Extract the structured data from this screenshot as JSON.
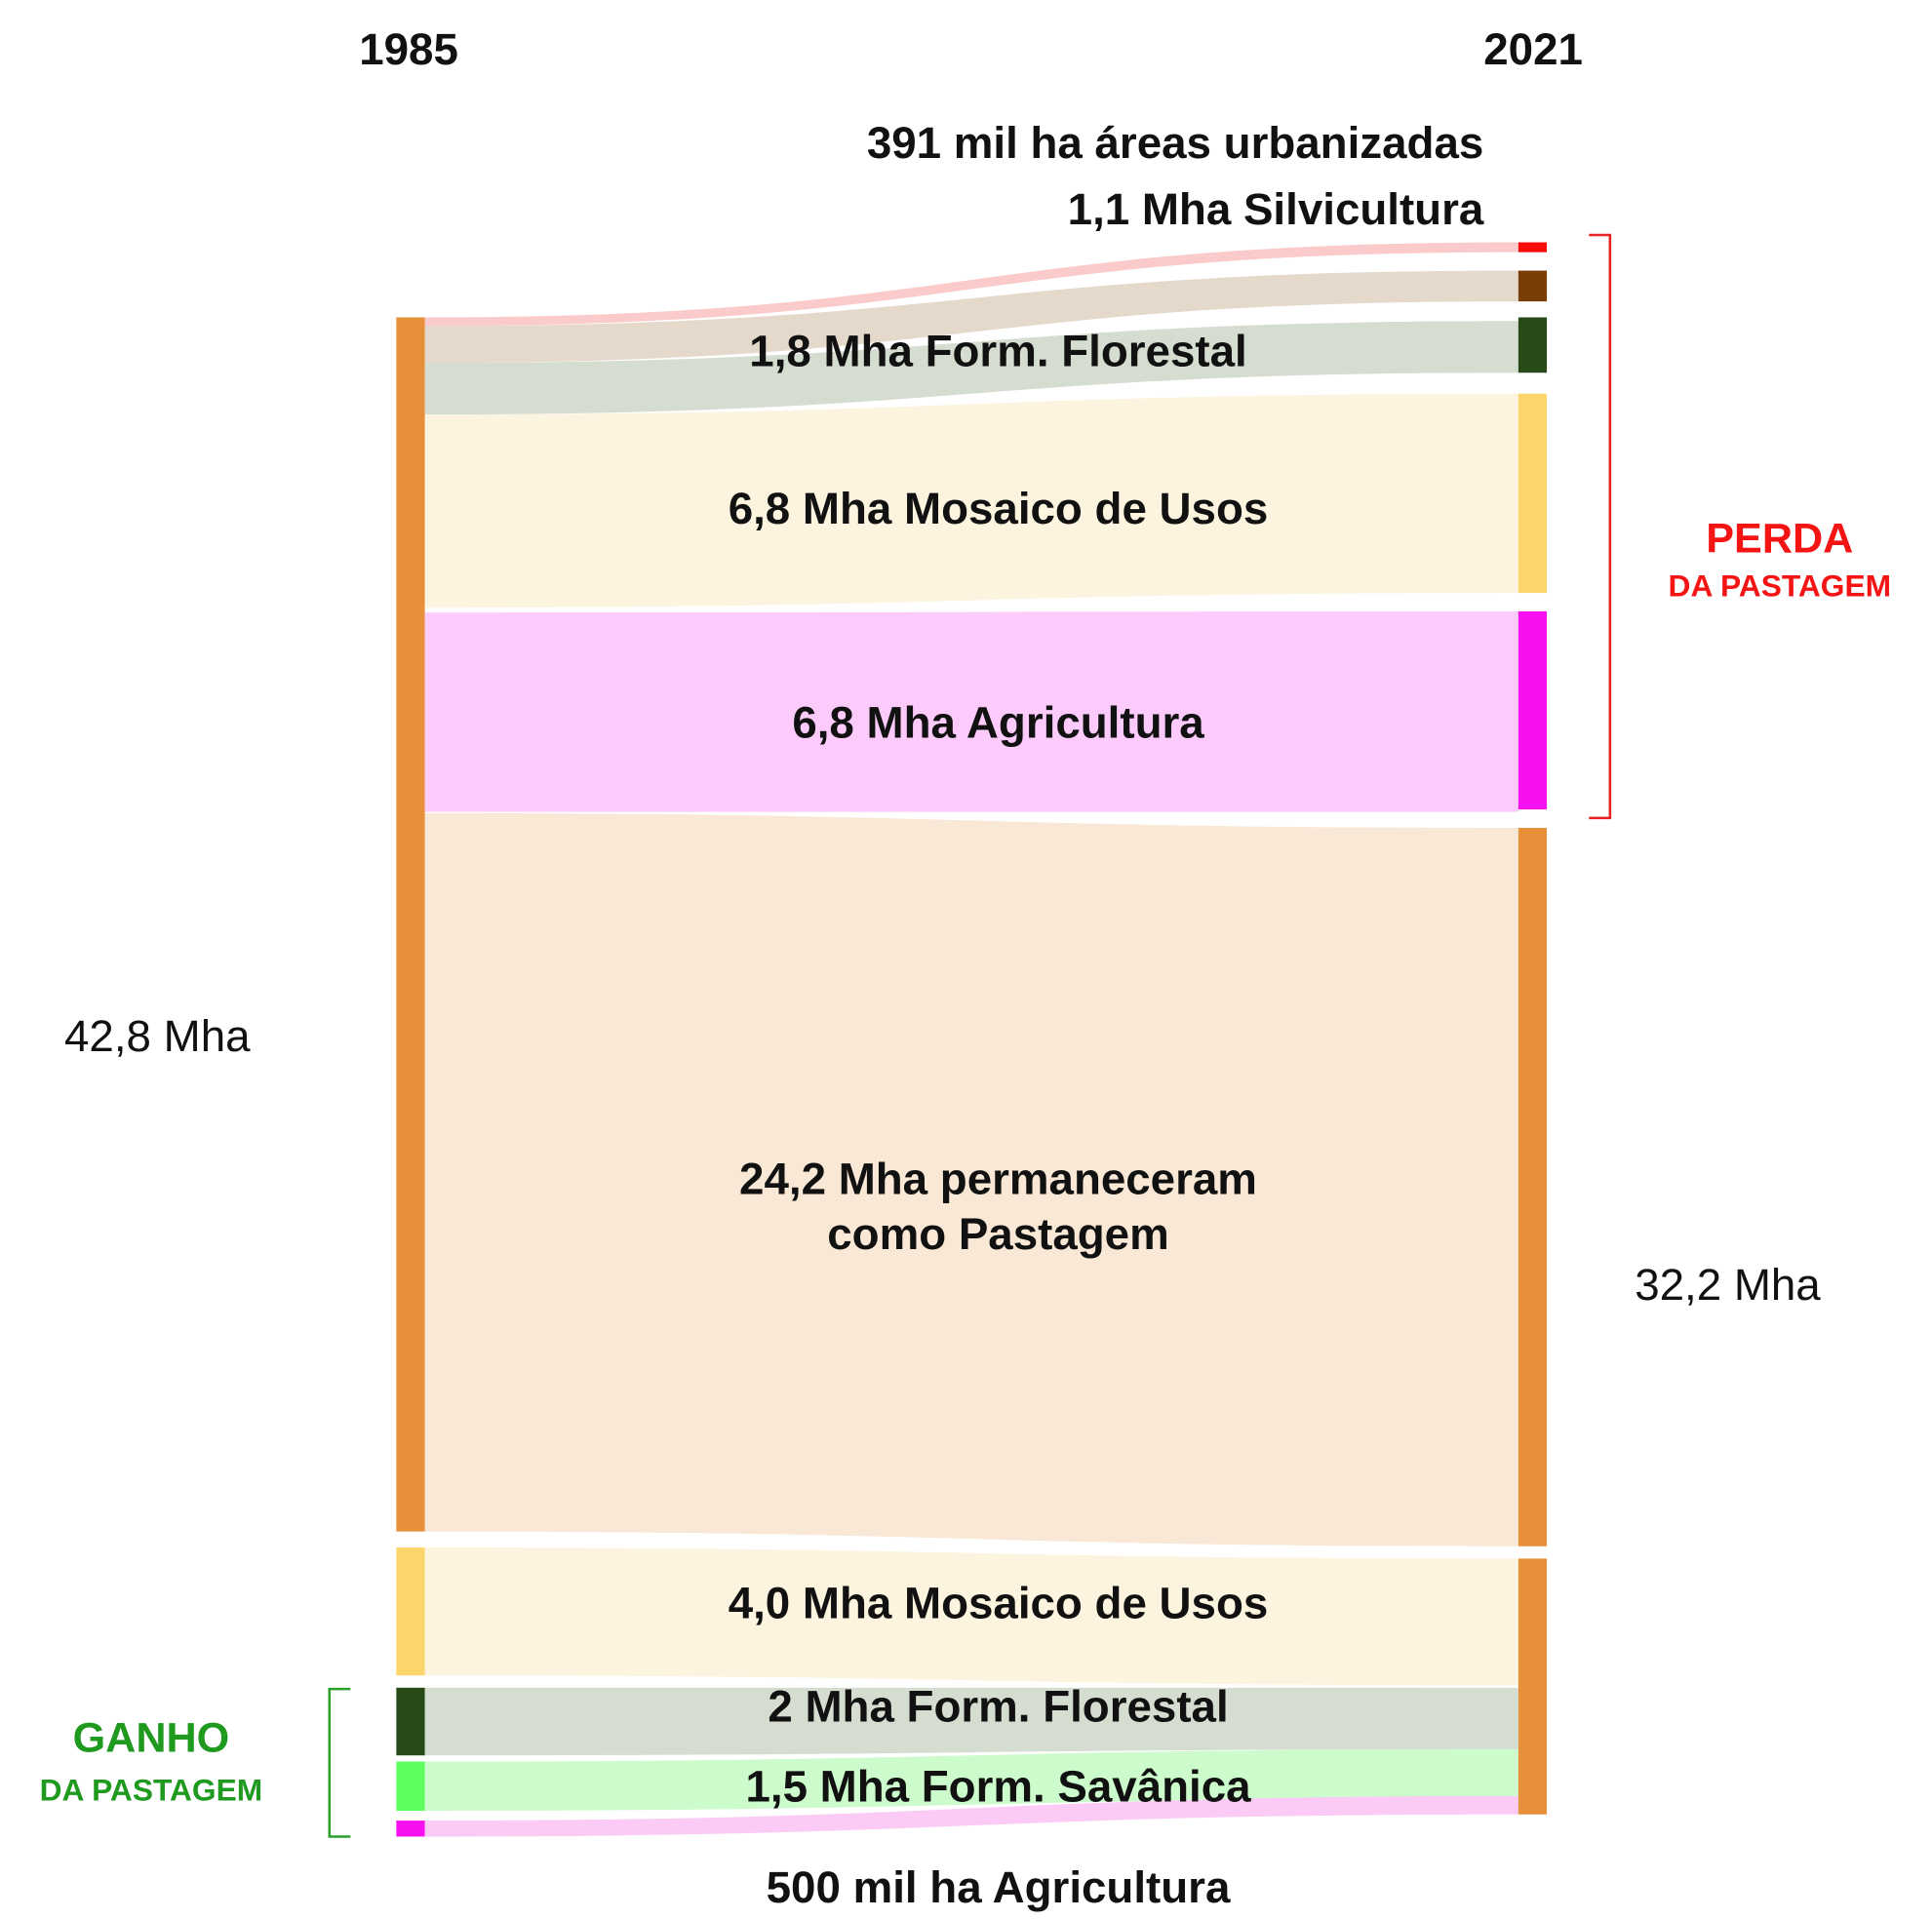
{
  "header": {
    "left_year": "1985",
    "right_year": "2021"
  },
  "totals": {
    "left": "42,8 Mha",
    "right": "32,2 Mha"
  },
  "loss": {
    "title": "PERDA",
    "subtitle": "DA PASTAGEM"
  },
  "gain": {
    "title": "GANHO",
    "subtitle": "DA PASTAGEM"
  },
  "flows": [
    {
      "label": "391 mil ha áreas urbanizadas"
    },
    {
      "label": "1,1 Mha Silvicultura"
    },
    {
      "label": "1,8 Mha Form. Florestal"
    },
    {
      "label": "6,8 Mha Mosaico de Usos"
    },
    {
      "label": "6,8 Mha Agricultura"
    },
    {
      "label": "24,2 Mha permaneceram",
      "label2": "como Pastagem"
    },
    {
      "label": "4,0 Mha Mosaico de Usos"
    },
    {
      "label": "2 Mha Form. Florestal"
    },
    {
      "label": "1,5 Mha Form. Savânica"
    },
    {
      "label": "500 mil ha Agricultura"
    }
  ]
}
